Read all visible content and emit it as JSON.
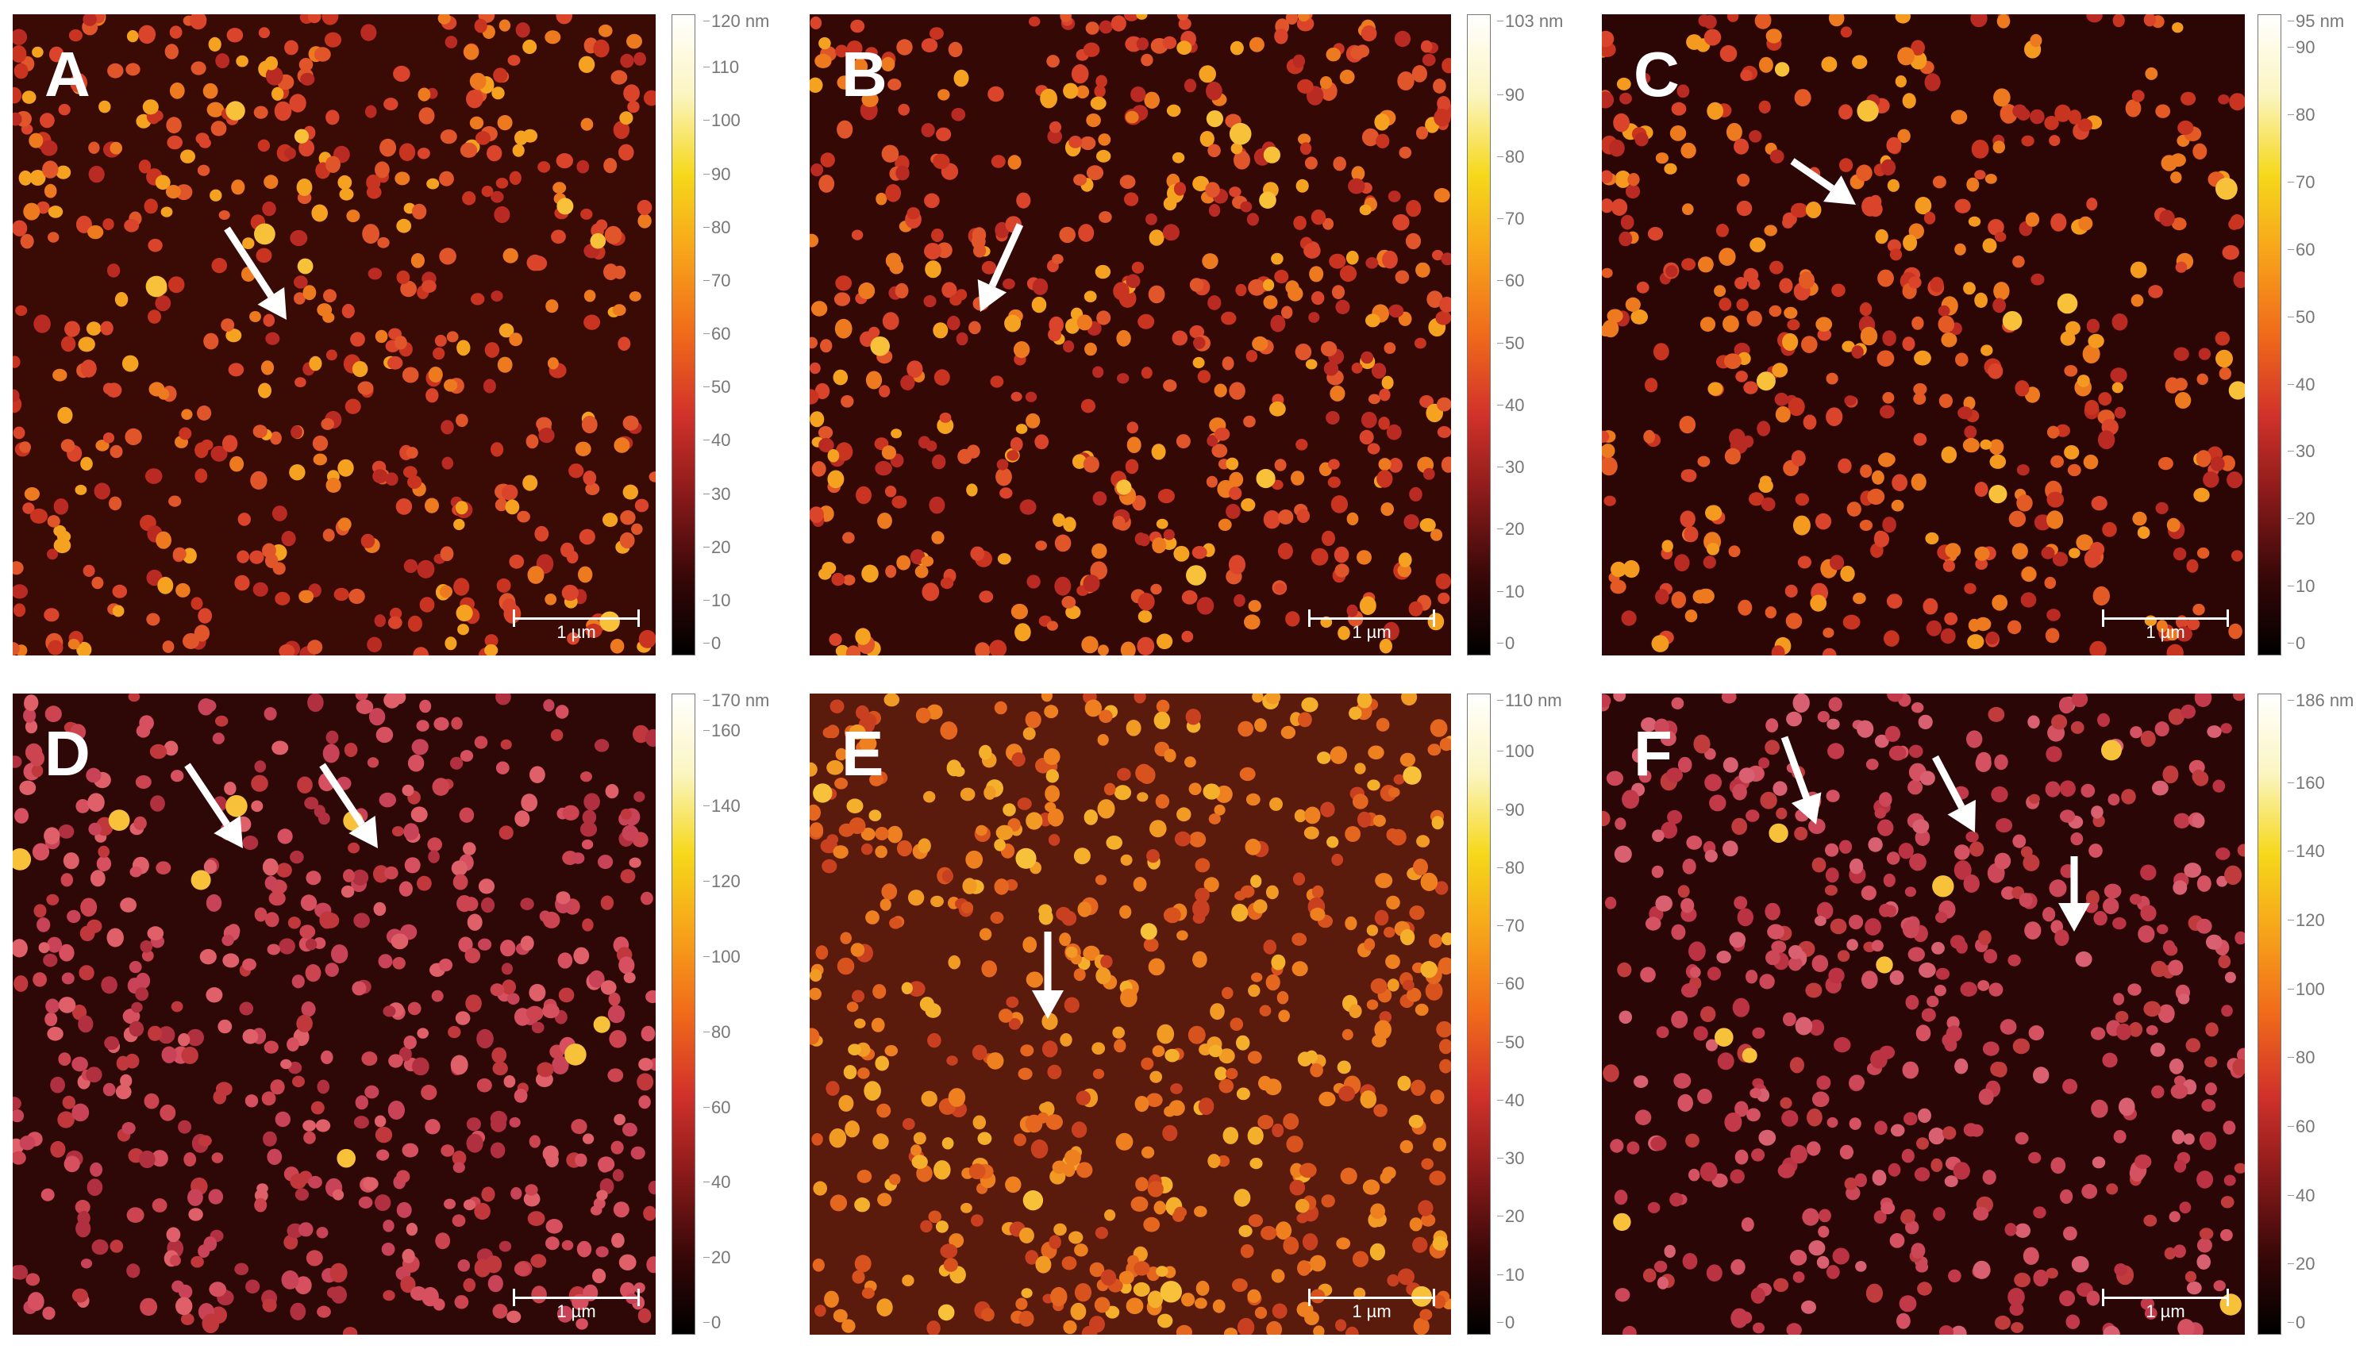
{
  "panels": [
    {
      "letter": "A",
      "scale_label": "1 µm",
      "colorbar": {
        "max_label": "120 nm",
        "ticks": [
          "110",
          "100",
          "90",
          "80",
          "70",
          "60",
          "50",
          "40",
          "30",
          "20",
          "10",
          "0"
        ],
        "tick_values": [
          110,
          100,
          90,
          80,
          70,
          60,
          50,
          40,
          30,
          20,
          10,
          0
        ],
        "max": 120
      },
      "background": "#3a0a05",
      "arrows": 1
    },
    {
      "letter": "B",
      "scale_label": "1 µm",
      "colorbar": {
        "max_label": "103 nm",
        "ticks": [
          "90",
          "80",
          "70",
          "60",
          "50",
          "40",
          "30",
          "20",
          "10",
          "0"
        ],
        "tick_values": [
          90,
          80,
          70,
          60,
          50,
          40,
          30,
          20,
          10,
          0
        ],
        "max": 103
      },
      "background": "#330805",
      "arrows": 1
    },
    {
      "letter": "C",
      "scale_label": "1 µm",
      "colorbar": {
        "max_label": "95 nm",
        "ticks": [
          "90",
          "80",
          "70",
          "60",
          "50",
          "40",
          "30",
          "20",
          "10",
          "0"
        ],
        "tick_values": [
          90,
          80,
          70,
          60,
          50,
          40,
          30,
          20,
          10,
          0
        ],
        "max": 95
      },
      "background": "#2c0604",
      "arrows": 1
    },
    {
      "letter": "D",
      "scale_label": "1 µm",
      "colorbar": {
        "max_label": "170 nm",
        "ticks": [
          "160",
          "140",
          "120",
          "100",
          "80",
          "60",
          "40",
          "20",
          "0"
        ],
        "tick_values": [
          160,
          140,
          120,
          100,
          80,
          60,
          40,
          20,
          0
        ],
        "max": 170
      },
      "background": "#2e0806",
      "arrows": 2
    },
    {
      "letter": "E",
      "scale_label": "1 µm",
      "colorbar": {
        "max_label": "110 nm",
        "ticks": [
          "100",
          "90",
          "80",
          "70",
          "60",
          "50",
          "40",
          "30",
          "20",
          "10",
          "0"
        ],
        "tick_values": [
          100,
          90,
          80,
          70,
          60,
          50,
          40,
          30,
          20,
          10,
          0
        ],
        "max": 110
      },
      "background": "#5a1a0c",
      "arrows": 1
    },
    {
      "letter": "F",
      "scale_label": "1 µm",
      "colorbar": {
        "max_label": "186 nm",
        "ticks": [
          "160",
          "140",
          "120",
          "100",
          "80",
          "60",
          "40",
          "20",
          "0"
        ],
        "tick_values": [
          160,
          140,
          120,
          100,
          80,
          60,
          40,
          20,
          0
        ],
        "max": 186
      },
      "background": "#2a0606",
      "arrows": 3
    }
  ],
  "colors": {
    "colormap": [
      "#000000",
      "#3a0808",
      "#8a1a1a",
      "#d2322a",
      "#f06a1a",
      "#f7a21a",
      "#f6d81a",
      "#fbf5c0",
      "#ffffff"
    ],
    "arrow": "#ffffff"
  }
}
